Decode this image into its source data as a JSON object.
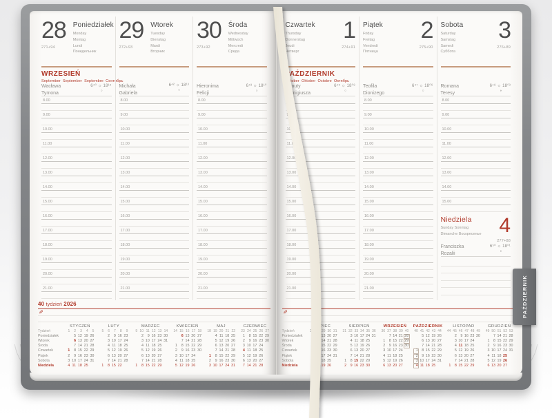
{
  "colors": {
    "accent_red": "#b13a2b",
    "rule_tan": "#c79b7e",
    "cover_gray": "#85878a",
    "tab_gray": "#6b6d70",
    "ribbon_cream": "#f2eee4"
  },
  "left_page": {
    "month_header": {
      "title": "WRZESIEŃ",
      "subtitle": "September  September  Septembre  Сентябрь"
    },
    "week_label": {
      "week": "40",
      "word": "tydzień",
      "year": "2026"
    },
    "days": [
      {
        "num": "28",
        "name": "Poniedziałek",
        "translations": "Monday\nMontag\nLundi\nПонедельник",
        "ordinal": "271+94",
        "namedays": "Wacława\nTymona",
        "sun": "6⁴⁰ ☼ 18¹⁵",
        "moon": "○"
      },
      {
        "num": "29",
        "name": "Wtorek",
        "translations": "Tuesday\nDienstag\nMardi\nВторник",
        "ordinal": "272+93",
        "namedays": "Michała\nGabriela",
        "sun": "6⁴² ☼ 18¹³",
        "moon": "○"
      },
      {
        "num": "30",
        "name": "Środa",
        "translations": "Wednesday\nMittwoch\nMercredi\nСреда",
        "ordinal": "273+92",
        "namedays": "Hieronima\nFelicji",
        "sun": "6⁴³ ☼ 18¹⁰",
        "moon": "○"
      }
    ]
  },
  "right_page": {
    "month_header": {
      "title": "PAŹDZIERNIK",
      "subtitle": "October  Oktober  Octobre  Октябрь"
    },
    "days": [
      {
        "num": "1",
        "name": "Czwartek",
        "translations": "Thursday\nDonnerstag\nJeudi\nЧетверг",
        "ordinal": "274+91",
        "namedays": "Danuty\nRemigiusza",
        "sun": "6⁴⁵ ☼ 18⁰⁸",
        "moon": "○"
      },
      {
        "num": "2",
        "name": "Piątek",
        "translations": "Friday\nFreitag\nVendredi\nПятница",
        "ordinal": "275+90",
        "namedays": "Teofila\nDionizego",
        "sun": "6⁴⁷ ☼ 18⁰⁶",
        "moon": "○"
      },
      {
        "num": "3",
        "name": "Sobota",
        "translations": "Saturday\nSamstag\nSamedi\nСуббота",
        "ordinal": "276+89",
        "namedays": "Romana\nTeresy",
        "sun": "6⁴⁸ ☼ 18⁰³",
        "moon": "◑",
        "hours_count": 8,
        "has_sunday": true
      }
    ],
    "sunday": {
      "name": "Niedziela",
      "translations": "Sunday Sonntag\nDimanche Воскресенье",
      "num": "4",
      "ordinal": "277+88",
      "namedays": "Franciszka\nRozalii",
      "sun": "6⁵⁰ ☼ 18⁰¹",
      "moon": "◑"
    }
  },
  "hours": [
    "8.00",
    "9.00",
    "10.00",
    "11.00",
    "12.00",
    "13.00",
    "14.00",
    "15.00",
    "16.00",
    "17.00",
    "18.00",
    "19.00",
    "20.00",
    "21.00"
  ],
  "notes": {
    "pen_icon": "✎"
  },
  "side_tab": {
    "label": "PAŹDZIERNIK"
  },
  "mini_calendar": {
    "week_col_label": "Tydzień",
    "row_labels": [
      "Poniedziałek",
      "Wtorek",
      "Środa",
      "Czwartek",
      "Piątek",
      "Sobota",
      "Niedziela"
    ],
    "left_months": [
      {
        "name": "STYCZEŃ",
        "weeks": [
          "1",
          "2",
          "3",
          "4",
          "5"
        ],
        "holidays": [
          "1",
          "6"
        ],
        "rows": [
          [
            "",
            "5",
            "12",
            "19",
            "26"
          ],
          [
            "",
            "6",
            "13",
            "20",
            "27"
          ],
          [
            "",
            "7",
            "14",
            "21",
            "28"
          ],
          [
            "1",
            "8",
            "15",
            "22",
            "29"
          ],
          [
            "2",
            "9",
            "16",
            "23",
            "30"
          ],
          [
            "3",
            "10",
            "17",
            "24",
            "31"
          ],
          [
            "4",
            "11",
            "18",
            "25",
            ""
          ]
        ]
      },
      {
        "name": "LUTY",
        "weeks": [
          "5",
          "6",
          "7",
          "8",
          "9"
        ],
        "holidays": [],
        "rows": [
          [
            "",
            "2",
            "9",
            "16",
            "23"
          ],
          [
            "",
            "3",
            "10",
            "17",
            "24"
          ],
          [
            "",
            "4",
            "11",
            "18",
            "25"
          ],
          [
            "",
            "5",
            "12",
            "19",
            "26"
          ],
          [
            "",
            "6",
            "13",
            "20",
            "27"
          ],
          [
            "",
            "7",
            "14",
            "21",
            "28"
          ],
          [
            "1",
            "8",
            "15",
            "22",
            ""
          ]
        ]
      },
      {
        "name": "MARZEC",
        "weeks": [
          "9",
          "10",
          "11",
          "12",
          "13",
          "14"
        ],
        "holidays": [],
        "rows": [
          [
            "",
            "2",
            "9",
            "16",
            "23",
            "30"
          ],
          [
            "",
            "3",
            "10",
            "17",
            "24",
            "31"
          ],
          [
            "",
            "4",
            "11",
            "18",
            "25",
            ""
          ],
          [
            "",
            "5",
            "12",
            "19",
            "26",
            ""
          ],
          [
            "",
            "6",
            "13",
            "20",
            "27",
            ""
          ],
          [
            "",
            "7",
            "14",
            "21",
            "28",
            ""
          ],
          [
            "1",
            "8",
            "15",
            "22",
            "29",
            ""
          ]
        ]
      },
      {
        "name": "KWIECIEŃ",
        "weeks": [
          "14",
          "15",
          "16",
          "17",
          "18"
        ],
        "holidays": [
          "6"
        ],
        "rows": [
          [
            "",
            "6",
            "13",
            "20",
            "27"
          ],
          [
            "",
            "7",
            "14",
            "21",
            "28"
          ],
          [
            "1",
            "8",
            "15",
            "22",
            "29"
          ],
          [
            "2",
            "9",
            "16",
            "23",
            "30"
          ],
          [
            "3",
            "10",
            "17",
            "24",
            ""
          ],
          [
            "4",
            "11",
            "18",
            "25",
            ""
          ],
          [
            "5",
            "12",
            "19",
            "26",
            ""
          ]
        ]
      },
      {
        "name": "MAJ",
        "weeks": [
          "18",
          "19",
          "20",
          "21",
          "22"
        ],
        "holidays": [
          "1"
        ],
        "rows": [
          [
            "",
            "4",
            "11",
            "18",
            "25"
          ],
          [
            "",
            "5",
            "12",
            "19",
            "26"
          ],
          [
            "",
            "6",
            "13",
            "20",
            "27"
          ],
          [
            "",
            "7",
            "14",
            "21",
            "28"
          ],
          [
            "1",
            "8",
            "15",
            "22",
            "29"
          ],
          [
            "2",
            "9",
            "16",
            "23",
            "30"
          ],
          [
            "3",
            "10",
            "17",
            "24",
            "31"
          ]
        ]
      },
      {
        "name": "CZERWIEC",
        "weeks": [
          "23",
          "24",
          "25",
          "26",
          "27"
        ],
        "holidays": [
          "4"
        ],
        "rows": [
          [
            "1",
            "8",
            "15",
            "22",
            "29"
          ],
          [
            "2",
            "9",
            "16",
            "23",
            "30"
          ],
          [
            "3",
            "10",
            "17",
            "24",
            ""
          ],
          [
            "4",
            "11",
            "18",
            "25",
            ""
          ],
          [
            "5",
            "12",
            "19",
            "26",
            ""
          ],
          [
            "6",
            "13",
            "20",
            "27",
            ""
          ],
          [
            "7",
            "14",
            "21",
            "28",
            ""
          ]
        ]
      }
    ],
    "right_months": [
      {
        "name": "LIPIEC",
        "weeks": [
          "27",
          "28",
          "29",
          "30",
          "31"
        ],
        "holidays": [],
        "rows": [
          [
            "",
            "6",
            "13",
            "20",
            "27"
          ],
          [
            "",
            "7",
            "14",
            "21",
            "28"
          ],
          [
            "1",
            "8",
            "15",
            "22",
            "29"
          ],
          [
            "2",
            "9",
            "16",
            "23",
            "30"
          ],
          [
            "3",
            "10",
            "17",
            "24",
            "31"
          ],
          [
            "4",
            "11",
            "18",
            "25",
            ""
          ],
          [
            "5",
            "12",
            "19",
            "26",
            ""
          ]
        ]
      },
      {
        "name": "SIERPIEŃ",
        "weeks": [
          "31",
          "32",
          "33",
          "34",
          "35",
          "36"
        ],
        "holidays": [
          "15"
        ],
        "rows": [
          [
            "",
            "3",
            "10",
            "17",
            "24",
            "31"
          ],
          [
            "",
            "4",
            "11",
            "18",
            "25",
            ""
          ],
          [
            "",
            "5",
            "12",
            "19",
            "26",
            ""
          ],
          [
            "",
            "6",
            "13",
            "20",
            "27",
            ""
          ],
          [
            "",
            "7",
            "14",
            "21",
            "28",
            ""
          ],
          [
            "1",
            "8",
            "15",
            "22",
            "29",
            ""
          ],
          [
            "2",
            "9",
            "16",
            "23",
            "30",
            ""
          ]
        ]
      },
      {
        "name": "WRZESIEŃ",
        "red": true,
        "weeks": [
          "36",
          "37",
          "38",
          "39",
          "40"
        ],
        "holidays": [],
        "boxed": [
          "28",
          "29",
          "30"
        ],
        "rows": [
          [
            "",
            "7",
            "14",
            "21",
            "28"
          ],
          [
            "1",
            "8",
            "15",
            "22",
            "29"
          ],
          [
            "2",
            "9",
            "16",
            "23",
            "30"
          ],
          [
            "3",
            "10",
            "17",
            "24",
            ""
          ],
          [
            "4",
            "11",
            "18",
            "25",
            ""
          ],
          [
            "5",
            "12",
            "19",
            "26",
            ""
          ],
          [
            "6",
            "13",
            "20",
            "27",
            ""
          ]
        ]
      },
      {
        "name": "PAŹDZIERNIK",
        "red": true,
        "weeks": [
          "40",
          "41",
          "42",
          "43",
          "44"
        ],
        "holidays": [],
        "boxed": [
          "1",
          "2",
          "3",
          "4"
        ],
        "rows": [
          [
            "",
            "5",
            "12",
            "19",
            "26"
          ],
          [
            "",
            "6",
            "13",
            "20",
            "27"
          ],
          [
            "",
            "7",
            "14",
            "21",
            "28"
          ],
          [
            "1",
            "8",
            "15",
            "22",
            "29"
          ],
          [
            "2",
            "9",
            "16",
            "23",
            "30"
          ],
          [
            "3",
            "10",
            "17",
            "24",
            "31"
          ],
          [
            "4",
            "11",
            "18",
            "25",
            ""
          ]
        ]
      },
      {
        "name": "LISTOPAD",
        "weeks": [
          "44",
          "45",
          "46",
          "47",
          "48",
          "49"
        ],
        "holidays": [
          "11"
        ],
        "rows": [
          [
            "",
            "2",
            "9",
            "16",
            "23",
            "30"
          ],
          [
            "",
            "3",
            "10",
            "17",
            "24",
            ""
          ],
          [
            "",
            "4",
            "11",
            "18",
            "25",
            ""
          ],
          [
            "",
            "5",
            "12",
            "19",
            "26",
            ""
          ],
          [
            "",
            "6",
            "13",
            "20",
            "27",
            ""
          ],
          [
            "",
            "7",
            "14",
            "21",
            "28",
            ""
          ],
          [
            "1",
            "8",
            "15",
            "22",
            "29",
            ""
          ]
        ]
      },
      {
        "name": "GRUDZIEŃ",
        "weeks": [
          "49",
          "50",
          "51",
          "52",
          "53"
        ],
        "holidays": [
          "25",
          "26"
        ],
        "rows": [
          [
            "",
            "7",
            "14",
            "21",
            "28"
          ],
          [
            "1",
            "8",
            "15",
            "22",
            "29"
          ],
          [
            "2",
            "9",
            "16",
            "23",
            "30"
          ],
          [
            "3",
            "10",
            "17",
            "24",
            "31"
          ],
          [
            "4",
            "11",
            "18",
            "25",
            ""
          ],
          [
            "5",
            "12",
            "19",
            "26",
            ""
          ],
          [
            "6",
            "13",
            "20",
            "27",
            ""
          ]
        ]
      }
    ]
  }
}
